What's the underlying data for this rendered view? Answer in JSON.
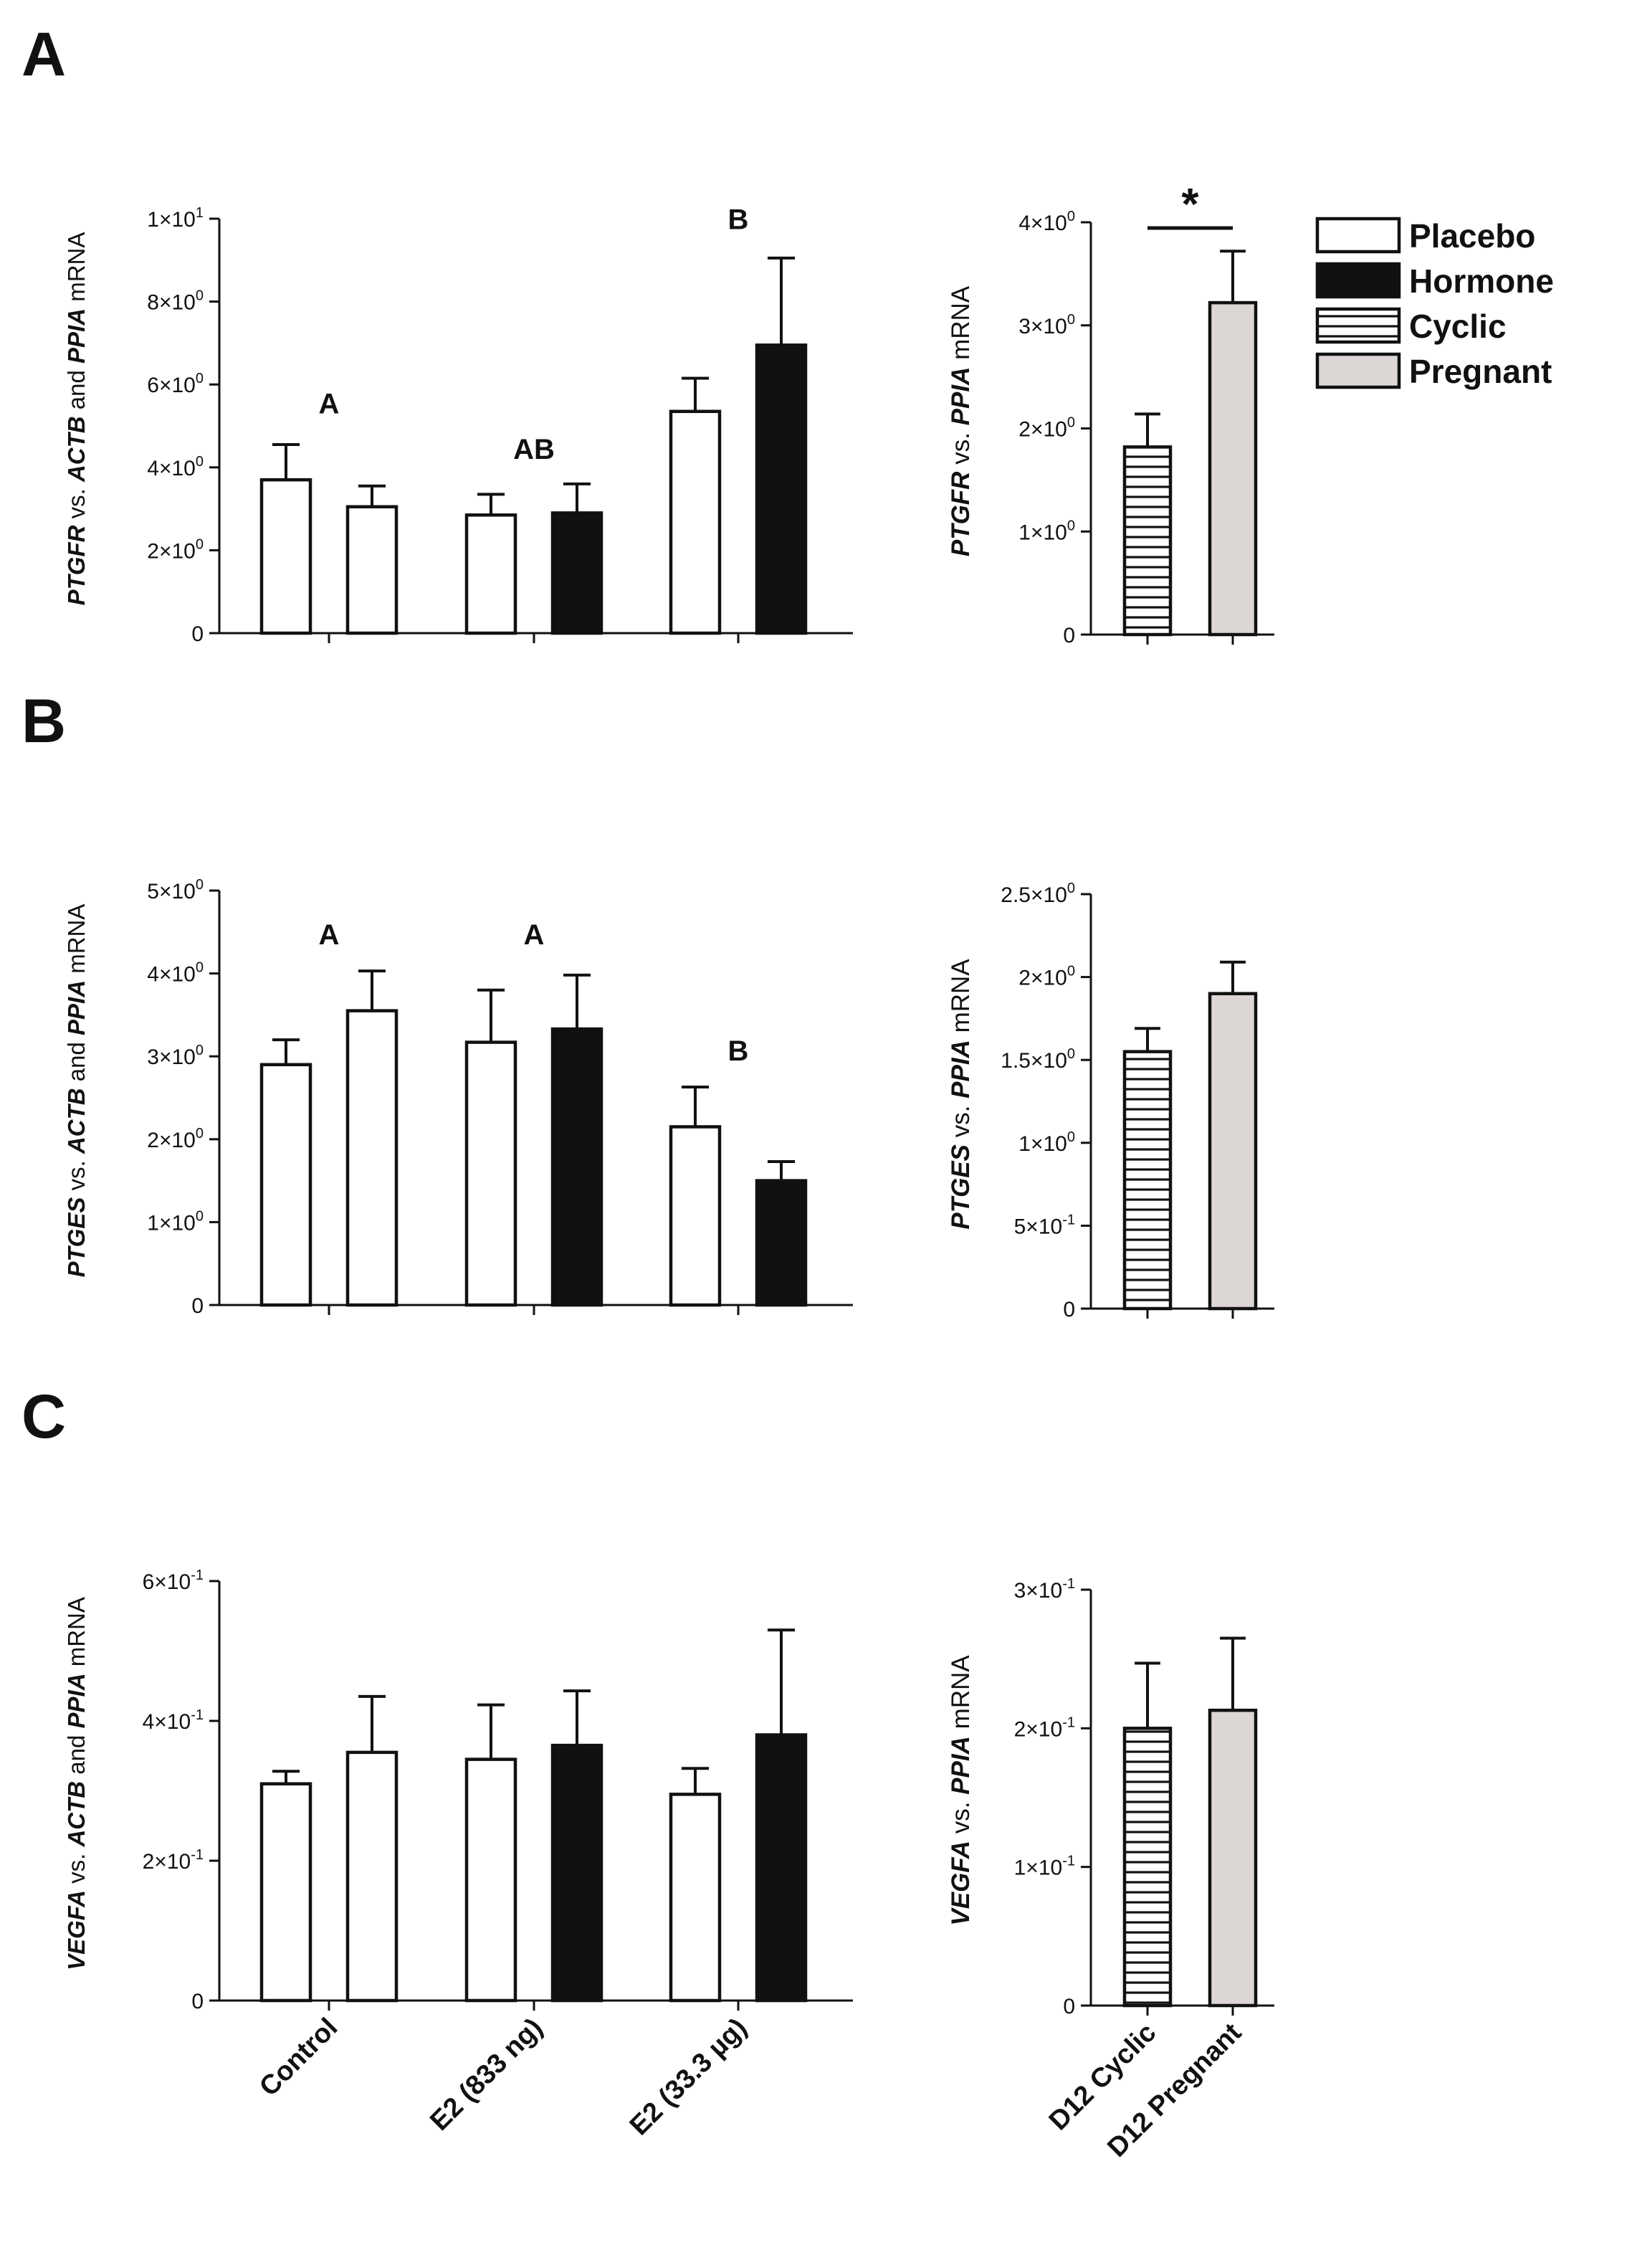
{
  "legend": [
    {
      "label": "Placebo",
      "fill": "plain"
    },
    {
      "label": "Hormone",
      "fill": "black"
    },
    {
      "label": "Cyclic",
      "fill": "hlines"
    },
    {
      "label": "Pregnant",
      "fill": "gray"
    }
  ],
  "colors": {
    "black": "#111111",
    "gray": "#dcd6d4",
    "white": "#ffffff"
  },
  "x_labels_left": [
    "Control",
    "E2 (833 ng)",
    "E2 (33.3 µg)"
  ],
  "x_labels_right": [
    "D12 Cyclic",
    "D12 Pregnant"
  ],
  "chart_data": [
    {
      "panel": "A",
      "side": "left",
      "type": "bar",
      "gene": "PTGFR",
      "ylabel_rest": " vs. ACTB and PPIA mRNA",
      "ylabel_parts": [
        {
          "t": "PTGFR",
          "i": true
        },
        {
          "t": " vs. ",
          "i": false
        },
        {
          "t": "ACTB",
          "i": true
        },
        {
          "t": " and ",
          "i": false
        },
        {
          "t": "PPIA",
          "i": true
        },
        {
          "t": " mRNA",
          "i": false
        }
      ],
      "categories": [
        "Control",
        "E2 (833 ng)",
        "E2 (33.3 µg)"
      ],
      "series": [
        {
          "name": "Placebo",
          "values": [
            3.7,
            2.85,
            5.35
          ],
          "errors": [
            0.85,
            0.5,
            0.8
          ]
        },
        {
          "name": "Hormone",
          "values": [
            3.05,
            2.9,
            6.95
          ],
          "errors": [
            0.5,
            0.7,
            2.1
          ]
        }
      ],
      "ylim": [
        0,
        10
      ],
      "yticks": [
        {
          "v": 0,
          "base": "0",
          "exp": ""
        },
        {
          "v": 2,
          "base": "2×10",
          "exp": "0"
        },
        {
          "v": 4,
          "base": "4×10",
          "exp": "0"
        },
        {
          "v": 6,
          "base": "6×10",
          "exp": "0"
        },
        {
          "v": 8,
          "base": "8×10",
          "exp": "0"
        },
        {
          "v": 10,
          "base": "1×10",
          "exp": "1"
        }
      ],
      "group_labels": [
        {
          "text": "A",
          "y": 5.3
        },
        {
          "text": "AB",
          "y": 4.2
        },
        {
          "text": "B",
          "y": 9.75
        }
      ]
    },
    {
      "panel": "A",
      "side": "right",
      "type": "bar",
      "ylabel_parts": [
        {
          "t": "PTGFR",
          "i": true
        },
        {
          "t": " vs. ",
          "i": false
        },
        {
          "t": "PPIA",
          "i": true
        },
        {
          "t": " mRNA",
          "i": false
        }
      ],
      "categories": [
        "D12 Cyclic",
        "D12 Pregnant"
      ],
      "values": [
        1.82,
        3.22
      ],
      "errors": [
        0.32,
        0.5
      ],
      "ylim": [
        0,
        4
      ],
      "yticks": [
        {
          "v": 0,
          "base": "0",
          "exp": ""
        },
        {
          "v": 1,
          "base": "1×10",
          "exp": "0"
        },
        {
          "v": 2,
          "base": "2×10",
          "exp": "0"
        },
        {
          "v": 3,
          "base": "3×10",
          "exp": "0"
        },
        {
          "v": 4,
          "base": "4×10",
          "exp": "0"
        }
      ],
      "significance": "*"
    },
    {
      "panel": "B",
      "side": "left",
      "type": "bar",
      "ylabel_parts": [
        {
          "t": "PTGES",
          "i": true
        },
        {
          "t": " vs. ",
          "i": false
        },
        {
          "t": "ACTB",
          "i": true
        },
        {
          "t": " and ",
          "i": false
        },
        {
          "t": "PPIA",
          "i": true
        },
        {
          "t": " mRNA",
          "i": false
        }
      ],
      "categories": [
        "Control",
        "E2 (833 ng)",
        "E2 (33.3 µg)"
      ],
      "series": [
        {
          "name": "Placebo",
          "values": [
            2.9,
            3.17,
            2.15
          ],
          "errors": [
            0.3,
            0.63,
            0.48
          ]
        },
        {
          "name": "Hormone",
          "values": [
            3.55,
            3.33,
            1.5
          ],
          "errors": [
            0.48,
            0.65,
            0.23
          ]
        }
      ],
      "ylim": [
        0,
        5
      ],
      "yticks": [
        {
          "v": 0,
          "base": "0",
          "exp": ""
        },
        {
          "v": 1,
          "base": "1×10",
          "exp": "0"
        },
        {
          "v": 2,
          "base": "2×10",
          "exp": "0"
        },
        {
          "v": 3,
          "base": "3×10",
          "exp": "0"
        },
        {
          "v": 4,
          "base": "4×10",
          "exp": "0"
        },
        {
          "v": 5,
          "base": "5×10",
          "exp": "0"
        }
      ],
      "group_labels": [
        {
          "text": "A",
          "y": 4.35
        },
        {
          "text": "A",
          "y": 4.35
        },
        {
          "text": "B",
          "y": 2.95
        }
      ]
    },
    {
      "panel": "B",
      "side": "right",
      "type": "bar",
      "ylabel_parts": [
        {
          "t": "PTGES",
          "i": true
        },
        {
          "t": "  vs. ",
          "i": false
        },
        {
          "t": "PPIA",
          "i": true
        },
        {
          "t": " mRNA",
          "i": false
        }
      ],
      "categories": [
        "D12 Cyclic",
        "D12 Pregnant"
      ],
      "values": [
        1.55,
        1.9
      ],
      "errors": [
        0.14,
        0.19
      ],
      "ylim": [
        0,
        2.5
      ],
      "yticks": [
        {
          "v": 0,
          "base": "0",
          "exp": ""
        },
        {
          "v": 0.5,
          "base": "5×10",
          "exp": "-1"
        },
        {
          "v": 1,
          "base": "1×10",
          "exp": "0"
        },
        {
          "v": 1.5,
          "base": "1.5×10",
          "exp": "0"
        },
        {
          "v": 2,
          "base": "2×10",
          "exp": "0"
        },
        {
          "v": 2.5,
          "base": "2.5×10",
          "exp": "0"
        }
      ]
    },
    {
      "panel": "C",
      "side": "left",
      "type": "bar",
      "ylabel_parts": [
        {
          "t": "VEGFA",
          "i": true
        },
        {
          "t": " vs. ",
          "i": false
        },
        {
          "t": "ACTB",
          "i": true
        },
        {
          "t": " and ",
          "i": false
        },
        {
          "t": "PPIA",
          "i": true
        },
        {
          "t": " mRNA",
          "i": false
        }
      ],
      "categories": [
        "Control",
        "E2 (833 ng)",
        "E2 (33.3 µg)"
      ],
      "series": [
        {
          "name": "Placebo",
          "values": [
            0.31,
            0.345,
            0.295
          ],
          "errors": [
            0.018,
            0.078,
            0.037
          ]
        },
        {
          "name": "Hormone",
          "values": [
            0.355,
            0.365,
            0.38
          ],
          "errors": [
            0.08,
            0.078,
            0.15
          ]
        }
      ],
      "ylim": [
        0,
        0.6
      ],
      "yticks": [
        {
          "v": 0,
          "base": "0",
          "exp": ""
        },
        {
          "v": 0.2,
          "base": "2×10",
          "exp": "-1"
        },
        {
          "v": 0.4,
          "base": "4×10",
          "exp": "-1"
        },
        {
          "v": 0.6,
          "base": "6×10",
          "exp": "-1"
        }
      ]
    },
    {
      "panel": "C",
      "side": "right",
      "type": "bar",
      "ylabel_parts": [
        {
          "t": "VEGFA",
          "i": true
        },
        {
          "t": "  vs. ",
          "i": false
        },
        {
          "t": "PPIA",
          "i": true
        },
        {
          "t": " mRNA",
          "i": false
        }
      ],
      "categories": [
        "D12 Cyclic",
        "D12 Pregnant"
      ],
      "values": [
        0.2,
        0.213
      ],
      "errors": [
        0.047,
        0.052
      ],
      "ylim": [
        0,
        0.3
      ],
      "yticks": [
        {
          "v": 0,
          "base": "0",
          "exp": ""
        },
        {
          "v": 0.1,
          "base": "1×10",
          "exp": "-1"
        },
        {
          "v": 0.2,
          "base": "2×10",
          "exp": "-1"
        },
        {
          "v": 0.3,
          "base": "3×10",
          "exp": "-1"
        }
      ]
    }
  ]
}
